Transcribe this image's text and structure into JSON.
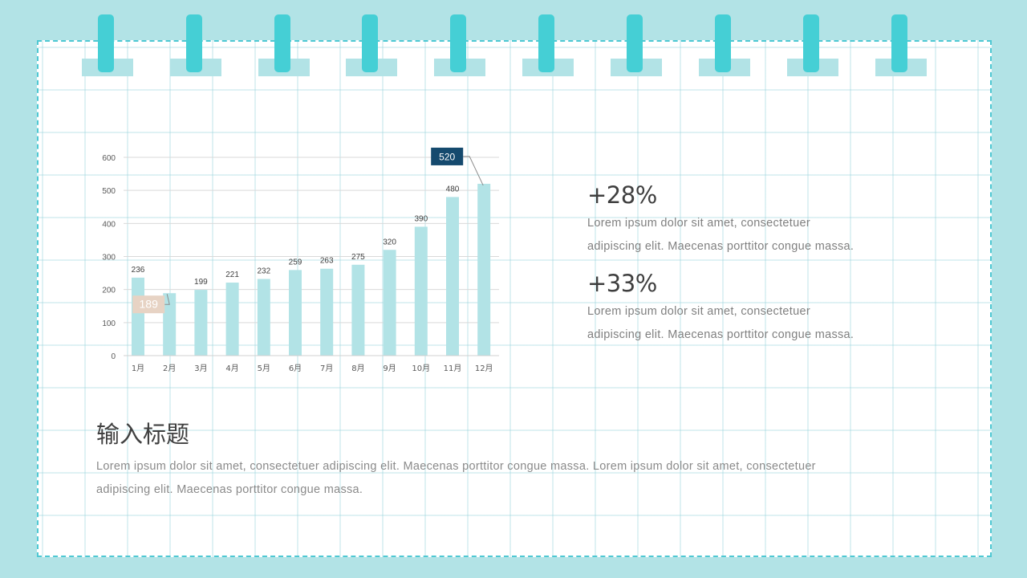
{
  "colors": {
    "background": "#b2e3e6",
    "paper": "#ffffff",
    "dashed_border": "#4fc8d3",
    "ring": "#45cfd5",
    "bar": "#b2e3e6",
    "callout_max": "#154a6e",
    "callout_min": "#e7d3c4"
  },
  "chart_data": {
    "type": "bar",
    "categories": [
      "1月",
      "2月",
      "3月",
      "4月",
      "5月",
      "6月",
      "7月",
      "8月",
      "9月",
      "10月",
      "11月",
      "12月"
    ],
    "values": [
      236,
      189,
      199,
      221,
      232,
      259,
      263,
      275,
      320,
      390,
      480,
      520
    ],
    "ylim": [
      0,
      600
    ],
    "yticks": [
      0,
      100,
      200,
      300,
      400,
      500,
      600
    ],
    "grid": true,
    "title": "",
    "xlabel": "",
    "ylabel": "",
    "callouts": [
      {
        "index": 11,
        "label": "520",
        "style": "max"
      },
      {
        "index": 1,
        "label": "189",
        "style": "min"
      }
    ]
  },
  "stats": [
    {
      "value": "+28%",
      "desc_lines": [
        "Lorem ipsum dolor sit amet, consectetuer",
        "adipiscing elit. Maecenas porttitor congue massa."
      ]
    },
    {
      "value": "+33%",
      "desc_lines": [
        "Lorem ipsum dolor sit amet, consectetuer",
        "adipiscing elit. Maecenas porttitor congue massa."
      ]
    }
  ],
  "section": {
    "title": "输入标题",
    "desc_lines": [
      "Lorem ipsum dolor sit amet, consectetuer adipiscing elit. Maecenas porttitor congue massa. Lorem ipsum dolor sit amet, consectetuer",
      "adipiscing elit. Maecenas porttitor congue massa."
    ]
  }
}
